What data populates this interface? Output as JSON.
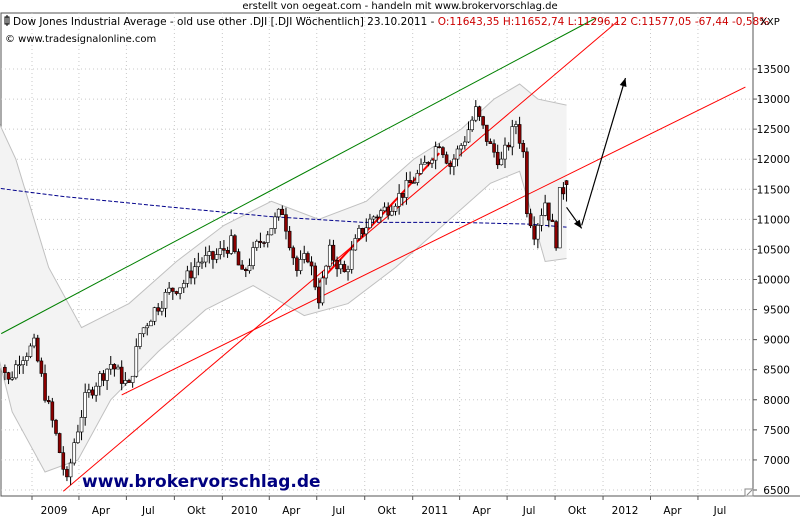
{
  "header": {
    "top_note": "erstellt von oegeat.com - handeln mit www.brokervorschlag.de",
    "title_left": "Dow Jones Industrial Average - old use other .DJI [.DJI  Wöchentlich] 23.10.2011 - ",
    "title_ohlc": "O:11643,35 H:11652,74 L:11296,12 C:11577,05 -67,44 -0,58%",
    "copyright": "© www.tradesignalonline.com",
    "axis_unit": "XXP"
  },
  "watermark": "www.brokervorschlag.de",
  "colors": {
    "candle_up": "#ffffff",
    "candle_down": "#8b0000",
    "trend_green": "#008000",
    "trend_red": "#ff0000",
    "ma_line": "#00008b",
    "band": "#c0c0c0",
    "title_red": "#cc0000",
    "watermark": "#000080"
  },
  "chart_data": {
    "type": "candlestick",
    "title": "Dow Jones Industrial Average - old use other .DJI [.DJI  Wöchentlich] 23.10.2011",
    "ylabel": "XXP",
    "ylim": [
      6350,
      13950
    ],
    "yticks": [
      6500,
      7000,
      7500,
      8000,
      8500,
      9000,
      9500,
      10000,
      10500,
      11000,
      11500,
      12000,
      12500,
      13000,
      13500
    ],
    "x_tick_labels": [
      "2009",
      "Apr",
      "Jul",
      "Okt",
      "2010",
      "Apr",
      "Jul",
      "Okt",
      "2011",
      "Apr",
      "Jul",
      "Okt",
      "2012",
      "Apr",
      "Jul"
    ],
    "x_tick_dates": [
      "2009-01-01",
      "2009-04-01",
      "2009-07-01",
      "2009-10-01",
      "2010-01-01",
      "2010-04-01",
      "2010-07-01",
      "2010-10-01",
      "2011-01-01",
      "2011-04-01",
      "2011-07-01",
      "2011-10-01",
      "2012-01-01",
      "2012-04-01",
      "2012-07-01"
    ],
    "last_bar": {
      "date": "2011-10-23",
      "open": 11643.35,
      "high": 11652.74,
      "low": 11296.12,
      "close": 11577.05,
      "change": -67.44,
      "change_pct": -0.58
    },
    "price_path": [
      [
        "2008-10-20",
        9000
      ],
      [
        "2008-11-17",
        8300
      ],
      [
        "2008-12-08",
        8700
      ],
      [
        "2009-01-05",
        8900
      ],
      [
        "2009-01-26",
        8100
      ],
      [
        "2009-02-16",
        7400
      ],
      [
        "2009-03-09",
        6600
      ],
      [
        "2009-03-23",
        7300
      ],
      [
        "2009-04-13",
        8000
      ],
      [
        "2009-05-04",
        8300
      ],
      [
        "2009-06-01",
        8600
      ],
      [
        "2009-07-06",
        8200
      ],
      [
        "2009-07-27",
        9100
      ],
      [
        "2009-08-24",
        9500
      ],
      [
        "2009-09-21",
        9800
      ],
      [
        "2009-10-19",
        9950
      ],
      [
        "2009-11-16",
        10300
      ],
      [
        "2009-12-14",
        10350
      ],
      [
        "2010-01-18",
        10600
      ],
      [
        "2010-02-08",
        10050
      ],
      [
        "2010-03-08",
        10550
      ],
      [
        "2010-04-26",
        11150
      ],
      [
        "2010-05-24",
        10150
      ],
      [
        "2010-06-14",
        10400
      ],
      [
        "2010-07-05",
        9700
      ],
      [
        "2010-07-26",
        10450
      ],
      [
        "2010-08-23",
        10100
      ],
      [
        "2010-09-20",
        10750
      ],
      [
        "2010-10-18",
        11050
      ],
      [
        "2010-11-15",
        11200
      ],
      [
        "2010-12-13",
        11450
      ],
      [
        "2011-01-17",
        11800
      ],
      [
        "2011-02-21",
        12300
      ],
      [
        "2011-03-14",
        11900
      ],
      [
        "2011-04-11",
        12350
      ],
      [
        "2011-05-02",
        12800
      ],
      [
        "2011-05-30",
        12200
      ],
      [
        "2011-06-20",
        11950
      ],
      [
        "2011-07-18",
        12600
      ],
      [
        "2011-08-01",
        12100
      ],
      [
        "2011-08-08",
        11200
      ],
      [
        "2011-08-22",
        10800
      ],
      [
        "2011-09-12",
        11300
      ],
      [
        "2011-10-03",
        10650
      ],
      [
        "2011-10-10",
        11400
      ],
      [
        "2011-10-23",
        11577
      ]
    ],
    "moving_average": [
      [
        "2008-09-29",
        11550
      ],
      [
        "2009-03-02",
        11380
      ],
      [
        "2009-09-28",
        11200
      ],
      [
        "2010-03-29",
        11050
      ],
      [
        "2010-09-27",
        10950
      ],
      [
        "2011-03-28",
        10950
      ],
      [
        "2011-08-15",
        10920
      ],
      [
        "2011-10-23",
        10870
      ]
    ],
    "band_upper": [
      [
        "2008-10-06",
        13050
      ],
      [
        "2008-12-01",
        12000
      ],
      [
        "2009-02-02",
        10200
      ],
      [
        "2009-04-06",
        9200
      ],
      [
        "2009-07-06",
        9600
      ],
      [
        "2009-10-05",
        10300
      ],
      [
        "2010-01-04",
        10900
      ],
      [
        "2010-04-05",
        11300
      ],
      [
        "2010-07-05",
        11000
      ],
      [
        "2010-10-04",
        11300
      ],
      [
        "2011-01-03",
        12000
      ],
      [
        "2011-04-04",
        12500
      ],
      [
        "2011-06-06",
        13000
      ],
      [
        "2011-07-25",
        13250
      ],
      [
        "2011-08-29",
        13000
      ],
      [
        "2011-10-23",
        12900
      ]
    ],
    "band_lower": [
      [
        "2008-10-06",
        9500
      ],
      [
        "2008-11-24",
        7800
      ],
      [
        "2009-01-26",
        6800
      ],
      [
        "2009-03-30",
        7000
      ],
      [
        "2009-06-01",
        8000
      ],
      [
        "2009-08-31",
        8800
      ],
      [
        "2009-11-30",
        9500
      ],
      [
        "2010-03-01",
        9900
      ],
      [
        "2010-06-07",
        9400
      ],
      [
        "2010-08-30",
        9600
      ],
      [
        "2010-11-29",
        10200
      ],
      [
        "2011-02-28",
        10900
      ],
      [
        "2011-05-30",
        11600
      ],
      [
        "2011-07-25",
        11800
      ],
      [
        "2011-09-12",
        10300
      ],
      [
        "2011-10-23",
        10350
      ]
    ],
    "trendlines": [
      {
        "color": "green",
        "points": [
          [
            "2008-11-03",
            9100
          ],
          [
            "2011-12-19",
            14350
          ]
        ]
      },
      {
        "color": "red",
        "points": [
          [
            "2009-03-02",
            6480
          ],
          [
            "2012-01-30",
            14300
          ]
        ]
      },
      {
        "color": "red",
        "points": [
          [
            "2009-06-22",
            8080
          ],
          [
            "2012-09-30",
            13200
          ]
        ]
      },
      {
        "color": "red",
        "points": [
          [
            "2010-07-05",
            9950
          ],
          [
            "2011-02-21",
            12100
          ]
        ]
      }
    ],
    "arrows": [
      {
        "from": [
          "2011-10-23",
          11200
        ],
        "to": [
          "2011-11-21",
          10850
        ]
      },
      {
        "from": [
          "2011-11-21",
          10900
        ],
        "to": [
          "2012-02-13",
          13350
        ]
      }
    ]
  }
}
